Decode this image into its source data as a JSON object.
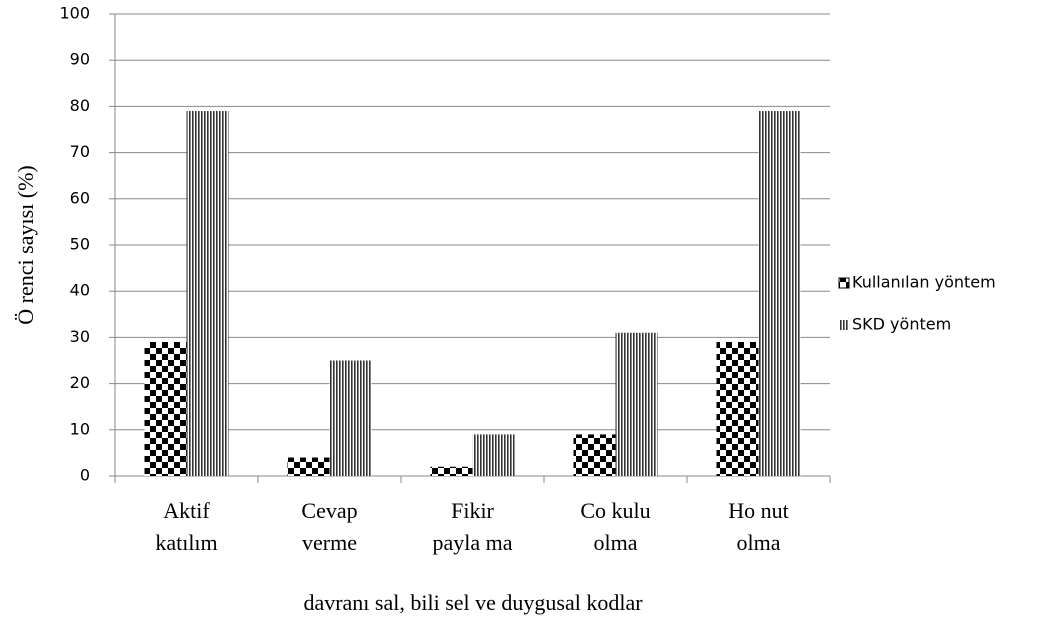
{
  "chart_data": {
    "type": "bar",
    "x_label": "davranı sal, bili sel ve duygusal kodlar",
    "y_label": "Ö renci sayısı (%)",
    "categories": [
      [
        "Aktif",
        "katılım"
      ],
      [
        "Cevap",
        "verme"
      ],
      [
        "Fikir",
        "payla ma"
      ],
      [
        "Co kulu",
        "olma"
      ],
      [
        "Ho nut",
        "olma"
      ]
    ],
    "series": [
      {
        "name": "Kullanılan yöntem",
        "color": "#000000",
        "pattern": "checker",
        "values": [
          29,
          4,
          2,
          9,
          29
        ]
      },
      {
        "name": "SKD yöntem",
        "color": "#333333",
        "pattern": "vertical-stripes",
        "values": [
          79,
          25,
          9,
          31,
          79
        ]
      }
    ],
    "ylim": [
      0,
      100
    ],
    "yticks": [
      0,
      10,
      20,
      30,
      40,
      50,
      60,
      70,
      80,
      90,
      100
    ],
    "grid": true,
    "legend": "right"
  }
}
